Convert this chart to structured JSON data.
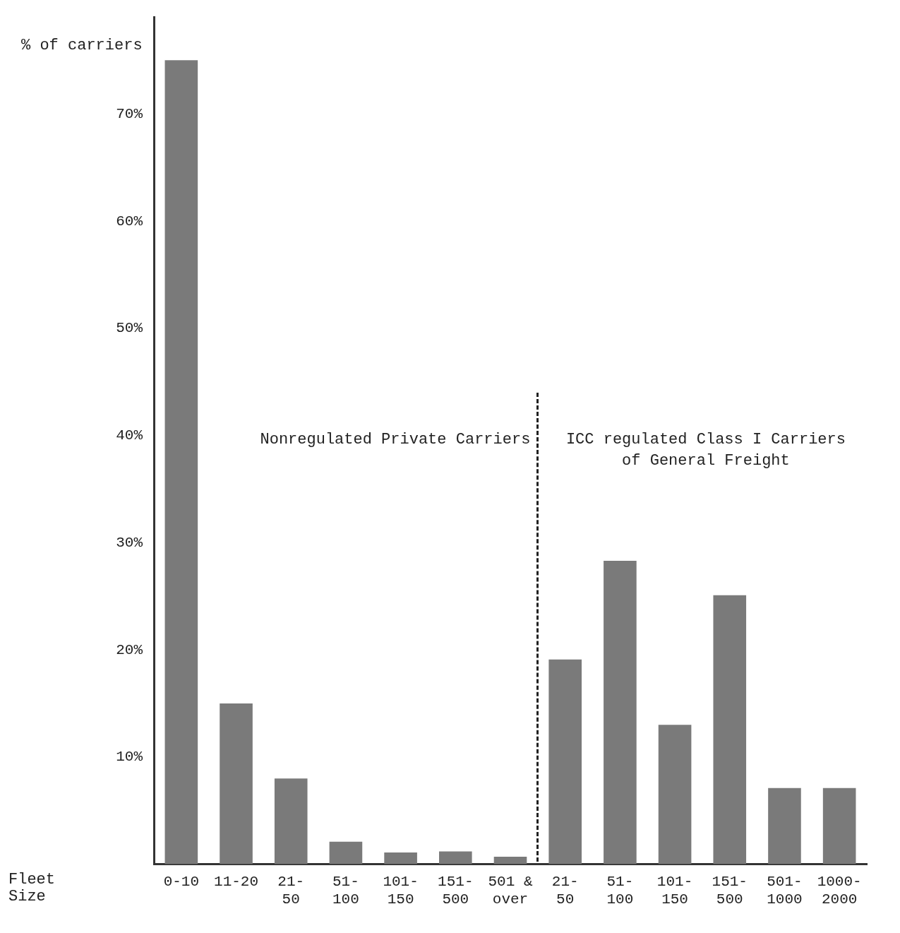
{
  "chart_data": {
    "type": "bar",
    "ylabel": "% of carriers",
    "xlabel": "Fleet\nSize",
    "categories": [
      "0-10",
      "11-20",
      "21-\n50",
      "51-\n100",
      "101-\n150",
      "151-\n500",
      "501 &\nover",
      "21-\n50",
      "51-\n100",
      "101-\n150",
      "151-\n500",
      "501-\n1000",
      "1000-\n2000"
    ],
    "values": [
      75,
      15,
      8,
      2.1,
      1.1,
      1.2,
      0.7,
      19.1,
      28.3,
      13,
      25.1,
      7.1,
      7.1
    ],
    "color": "#7a7a7a",
    "ylim": [
      0,
      79
    ],
    "yticks": [
      {
        "value": 10,
        "label": "10%"
      },
      {
        "value": 20,
        "label": "20%"
      },
      {
        "value": 30,
        "label": "30%"
      },
      {
        "value": 40,
        "label": "40%"
      },
      {
        "value": 50,
        "label": "50%"
      },
      {
        "value": 60,
        "label": "60%"
      },
      {
        "value": 70,
        "label": "70%"
      }
    ],
    "grid": false,
    "legend": false,
    "annotations": [
      "Nonregulated Private Carriers",
      "ICC regulated Class I Carriers\nof General Freight"
    ]
  }
}
